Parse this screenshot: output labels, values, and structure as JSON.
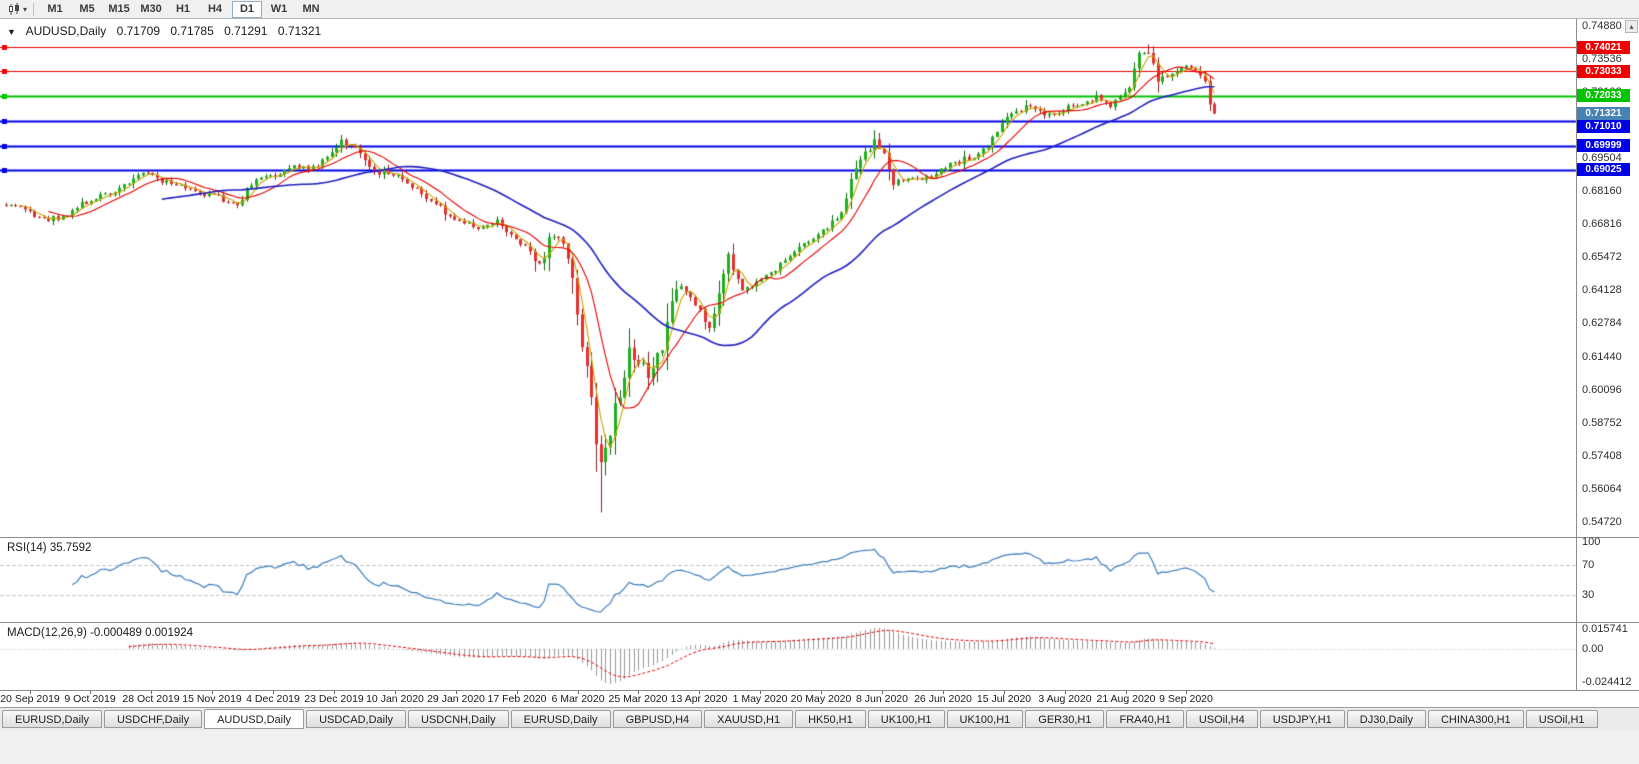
{
  "toolbar": {
    "chart_type_tool": {
      "icon": "candlestick-chart",
      "caret": "▾"
    },
    "timeframes": [
      {
        "label": "M1",
        "active": false
      },
      {
        "label": "M5",
        "active": false
      },
      {
        "label": "M15",
        "active": false
      },
      {
        "label": "M30",
        "active": false
      },
      {
        "label": "H1",
        "active": false
      },
      {
        "label": "H4",
        "active": false
      },
      {
        "label": "D1",
        "active": true
      },
      {
        "label": "W1",
        "active": false
      },
      {
        "label": "MN",
        "active": false
      }
    ]
  },
  "chart": {
    "title": {
      "marker": "▼",
      "symbol_period": "AUDUSD,Daily",
      "open": "0.71709",
      "high": "0.71785",
      "low": "0.71291",
      "close": "0.71321"
    },
    "scroll_up_glyph": "▴"
  },
  "panels": {
    "rsi": {
      "label": "RSI(14) 35.7592",
      "axis_labels": [
        {
          "text": "100",
          "value": 100
        },
        {
          "text": "70",
          "value": 70
        },
        {
          "text": "30",
          "value": 30
        }
      ]
    },
    "macd": {
      "label": "MACD(12,26,9) -0.000489 0.001924",
      "axis_labels": [
        {
          "text": "0.015741",
          "pos": "max"
        },
        {
          "text": "0.00",
          "pos": "zero"
        },
        {
          "text": "-0.024412",
          "pos": "min"
        }
      ]
    }
  },
  "tabs": {
    "items": [
      {
        "label": "EURUSD,Daily",
        "active": false
      },
      {
        "label": "USDCHF,Daily",
        "active": false
      },
      {
        "label": "AUDUSD,Daily",
        "active": true
      },
      {
        "label": "USDCAD,Daily",
        "active": false
      },
      {
        "label": "USDCNH,Daily",
        "active": false
      },
      {
        "label": "EURUSD,Daily",
        "active": false
      },
      {
        "label": "GBPUSD,H4",
        "active": false
      },
      {
        "label": "XAUUSD,H1",
        "active": false
      },
      {
        "label": "HK50,H1",
        "active": false
      },
      {
        "label": "UK100,H1",
        "active": false
      },
      {
        "label": "UK100,H1",
        "active": false
      },
      {
        "label": "GER30,H1",
        "active": false
      },
      {
        "label": "FRA40,H1",
        "active": false
      },
      {
        "label": "USOil,H4",
        "active": false
      },
      {
        "label": "USDJPY,H1",
        "active": false
      },
      {
        "label": "DJ30,Daily",
        "active": false
      },
      {
        "label": "CHINA300,H1",
        "active": false
      },
      {
        "label": "USOil,H1",
        "active": false
      }
    ]
  },
  "chart_data": {
    "type": "candlestick",
    "symbol": "AUDUSD",
    "timeframe": "Daily",
    "current_ohlc": {
      "open": 0.71709,
      "high": 0.71785,
      "low": 0.71291,
      "close": 0.71321
    },
    "y_axis_labels": [
      "0.74880",
      "0.73536",
      "0.72192",
      "0.70848",
      "0.69504",
      "0.68160",
      "0.66816",
      "0.65472",
      "0.64128",
      "0.62784",
      "0.61440",
      "0.60096",
      "0.58752",
      "0.57408",
      "0.56064",
      "0.54720"
    ],
    "x_labels": [
      "20 Sep 2019",
      "9 Oct 2019",
      "28 Oct 2019",
      "15 Nov 2019",
      "4 Dec 2019",
      "23 Dec 2019",
      "10 Jan 2020",
      "29 Jan 2020",
      "17 Feb 2020",
      "6 Mar 2020",
      "25 Mar 2020",
      "13 Apr 2020",
      "1 May 2020",
      "20 May 2020",
      "8 Jun 2020",
      "26 Jun 2020",
      "15 Jul 2020",
      "3 Aug 2020",
      "21 Aug 2020",
      "9 Sep 2020"
    ],
    "hlines": [
      {
        "price": 0.74021,
        "color": "#F00000",
        "width": 1
      },
      {
        "price": 0.73033,
        "color": "#F00000",
        "width": 1
      },
      {
        "price": 0.72033,
        "color": "#00C400",
        "width": 2
      },
      {
        "price": 0.7101,
        "color": "#0000E8",
        "width": 2
      },
      {
        "price": 0.69999,
        "color": "#0000E8",
        "width": 2
      },
      {
        "price": 0.69025,
        "color": "#0000E8",
        "width": 2
      }
    ],
    "price_tags": [
      {
        "text": "0.74021",
        "price": 0.74021,
        "color": "#F00000",
        "kind": "hline"
      },
      {
        "text": "0.73033",
        "price": 0.73033,
        "color": "#F00000",
        "kind": "hline"
      },
      {
        "text": "0.72033",
        "price": 0.72033,
        "color": "#00C400",
        "kind": "hline"
      },
      {
        "text": "0.71321",
        "price": 0.71321,
        "color": "#4682B4",
        "kind": "current-bid"
      },
      {
        "text": "0.71010",
        "price": 0.7101,
        "color": "#0000E8",
        "kind": "hline"
      },
      {
        "text": "0.69999",
        "price": 0.69999,
        "color": "#0000E8",
        "kind": "hline"
      },
      {
        "text": "0.69025",
        "price": 0.69025,
        "color": "#0000E8",
        "kind": "hline"
      }
    ],
    "bars_total": 257,
    "close_anchors": [
      [
        0,
        0.6767
      ],
      [
        4,
        0.6745
      ],
      [
        8,
        0.67
      ],
      [
        11,
        0.6712
      ],
      [
        13,
        0.6725
      ],
      [
        18,
        0.6785
      ],
      [
        22,
        0.681
      ],
      [
        26,
        0.6843
      ],
      [
        29,
        0.6895
      ],
      [
        33,
        0.6862
      ],
      [
        39,
        0.6823
      ],
      [
        45,
        0.679
      ],
      [
        49,
        0.6764
      ],
      [
        52,
        0.6847
      ],
      [
        57,
        0.6885
      ],
      [
        61,
        0.692
      ],
      [
        65,
        0.6906
      ],
      [
        68,
        0.695
      ],
      [
        71,
        0.7021
      ],
      [
        74,
        0.699
      ],
      [
        78,
        0.69
      ],
      [
        83,
        0.688
      ],
      [
        87,
        0.6827
      ],
      [
        91,
        0.676
      ],
      [
        95,
        0.67
      ],
      [
        99,
        0.6667
      ],
      [
        104,
        0.669
      ],
      [
        108,
        0.6626
      ],
      [
        113,
        0.6515
      ],
      [
        115,
        0.6626
      ],
      [
        117,
        0.6637
      ],
      [
        118,
        0.6582
      ],
      [
        120,
        0.6489
      ],
      [
        121,
        0.6289
      ],
      [
        122,
        0.6184
      ],
      [
        123,
        0.6115
      ],
      [
        124,
        0.5994
      ],
      [
        125,
        0.5781
      ],
      [
        126,
        0.5744
      ],
      [
        127,
        0.5798
      ],
      [
        128,
        0.5829
      ],
      [
        129,
        0.5965
      ],
      [
        130,
        0.5967
      ],
      [
        132,
        0.6168
      ],
      [
        134,
        0.6138
      ],
      [
        136,
        0.607
      ],
      [
        139,
        0.6164
      ],
      [
        141,
        0.6349
      ],
      [
        143,
        0.6437
      ],
      [
        146,
        0.6364
      ],
      [
        149,
        0.6257
      ],
      [
        153,
        0.6549
      ],
      [
        156,
        0.6416
      ],
      [
        160,
        0.645
      ],
      [
        165,
        0.653
      ],
      [
        169,
        0.66
      ],
      [
        173,
        0.665
      ],
      [
        177,
        0.672
      ],
      [
        180,
        0.692
      ],
      [
        182,
        0.6968
      ],
      [
        184,
        0.7019
      ],
      [
        186,
        0.696
      ],
      [
        188,
        0.685
      ],
      [
        192,
        0.688
      ],
      [
        195,
        0.6864
      ],
      [
        200,
        0.692
      ],
      [
        205,
        0.696
      ],
      [
        208,
        0.7
      ],
      [
        212,
        0.713
      ],
      [
        216,
        0.7159
      ],
      [
        221,
        0.712
      ],
      [
        225,
        0.7157
      ],
      [
        228,
        0.7165
      ],
      [
        231,
        0.7205
      ],
      [
        234,
        0.716
      ],
      [
        238,
        0.7235
      ],
      [
        240,
        0.737
      ],
      [
        242,
        0.7375
      ],
      [
        244,
        0.727
      ],
      [
        247,
        0.7284
      ],
      [
        250,
        0.7319
      ],
      [
        252,
        0.7312
      ],
      [
        254,
        0.725
      ],
      [
        255,
        0.7172
      ],
      [
        256,
        0.71321
      ]
    ],
    "special_wicks": [
      {
        "bar": 126,
        "low": 0.551
      },
      {
        "bar": 184,
        "high": 0.7064
      },
      {
        "bar": 242,
        "high": 0.7413
      }
    ],
    "moving_averages": [
      {
        "period": 4,
        "color": "#C8A400"
      },
      {
        "period": 10,
        "color": "#E80000"
      },
      {
        "period": 34,
        "color": "#2020C0"
      }
    ],
    "colors": {
      "up": "#1FB01F",
      "down": "#E43030",
      "wick_up": "#0A6E0A",
      "wick_down": "#952020",
      "rsi_line": "#3C7EBF",
      "macd_hist": "#9A9A9A",
      "macd_signal": "#E80000",
      "level_dash": "#C9C9C9",
      "zero_dash": "#BDBDBD"
    },
    "indicators": [
      {
        "name": "RSI",
        "period": 14,
        "value": 35.7592
      },
      {
        "name": "MACD",
        "fast": 12,
        "slow": 26,
        "signal": 9,
        "macd_value": -0.000489,
        "signal_value": 0.001924
      }
    ]
  }
}
